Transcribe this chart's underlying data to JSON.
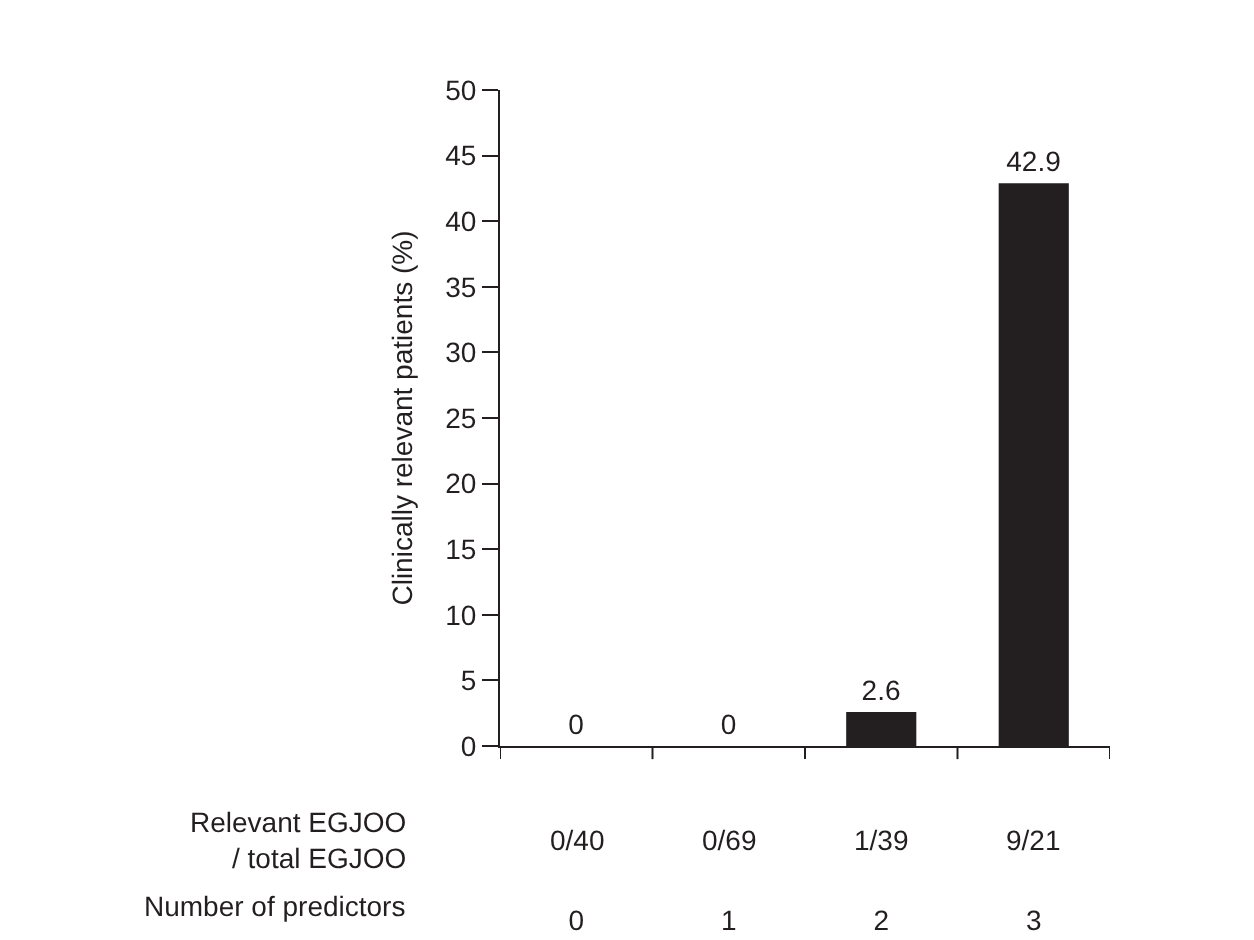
{
  "chart_data": {
    "type": "bar",
    "xlabel": "Number of predictors",
    "ylabel": "Clinically relevant patients (%)",
    "categories": [
      "0",
      "1",
      "2",
      "3"
    ],
    "values": [
      0,
      0,
      2.6,
      42.9
    ],
    "color": "#231f20",
    "data_labels": true,
    "ylim": [
      0,
      50
    ],
    "yticks": [
      0,
      5,
      10,
      15,
      20,
      25,
      30,
      35,
      40,
      45,
      50
    ],
    "grid": false,
    "annotations": [
      "Relevant EGJOO\n/ total EGJOO",
      "0/40",
      "0/69",
      "1/39",
      "9/21"
    ]
  }
}
